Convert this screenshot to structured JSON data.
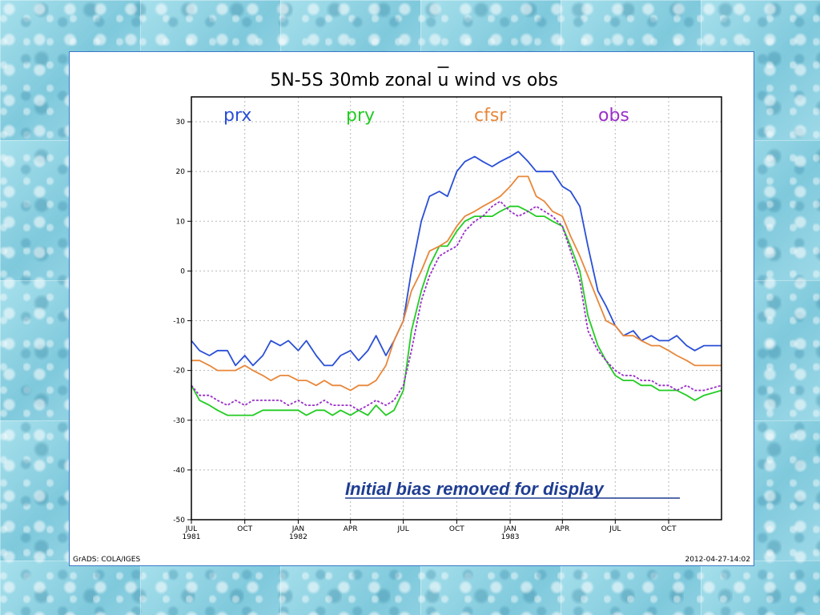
{
  "chart_data": {
    "type": "line",
    "title": "5N-5S 30mb zonal u wind vs obs",
    "title_overline_char": "u",
    "xlabel": "",
    "ylabel": "",
    "ylim": [
      -50,
      35
    ],
    "yticks": [
      30,
      20,
      10,
      0,
      -10,
      -20,
      -30,
      -40,
      -50
    ],
    "ytick_labels": [
      "30",
      "20",
      "10",
      "0",
      "-10",
      "-20",
      "-30",
      "-40",
      "-50"
    ],
    "x_start": "1981-07-01",
    "x_end": "1983-12-31",
    "xticks": [
      {
        "date": "1981-07-01",
        "label": "JUL",
        "sub": "1981"
      },
      {
        "date": "1981-10-01",
        "label": "OCT",
        "sub": ""
      },
      {
        "date": "1982-01-01",
        "label": "JAN",
        "sub": "1982"
      },
      {
        "date": "1982-04-01",
        "label": "APR",
        "sub": ""
      },
      {
        "date": "1982-07-01",
        "label": "JUL",
        "sub": ""
      },
      {
        "date": "1982-10-01",
        "label": "OCT",
        "sub": ""
      },
      {
        "date": "1983-01-01",
        "label": "JAN",
        "sub": "1983"
      },
      {
        "date": "1983-04-01",
        "label": "APR",
        "sub": ""
      },
      {
        "date": "1983-07-01",
        "label": "JUL",
        "sub": ""
      },
      {
        "date": "1983-10-01",
        "label": "OCT",
        "sub": ""
      }
    ],
    "grid": true,
    "legend_position": "top",
    "annotation": "Initial bias removed for display",
    "series": [
      {
        "name": "prx",
        "color": "#2a4fd6",
        "dashed": false,
        "points": [
          [
            "1981-07-01",
            -14
          ],
          [
            "1981-07-15",
            -16
          ],
          [
            "1981-08-01",
            -17
          ],
          [
            "1981-08-15",
            -16
          ],
          [
            "1981-09-01",
            -16
          ],
          [
            "1981-09-15",
            -19
          ],
          [
            "1981-10-01",
            -17
          ],
          [
            "1981-10-15",
            -19
          ],
          [
            "1981-11-01",
            -17
          ],
          [
            "1981-11-15",
            -14
          ],
          [
            "1981-12-01",
            -15
          ],
          [
            "1981-12-15",
            -14
          ],
          [
            "1982-01-01",
            -16
          ],
          [
            "1982-01-15",
            -14
          ],
          [
            "1982-02-01",
            -17
          ],
          [
            "1982-02-15",
            -19
          ],
          [
            "1982-03-01",
            -19
          ],
          [
            "1982-03-15",
            -17
          ],
          [
            "1982-04-01",
            -16
          ],
          [
            "1982-04-15",
            -18
          ],
          [
            "1982-05-01",
            -16
          ],
          [
            "1982-05-15",
            -13
          ],
          [
            "1982-06-01",
            -17
          ],
          [
            "1982-06-15",
            -14
          ],
          [
            "1982-07-01",
            -10
          ],
          [
            "1982-07-15",
            0
          ],
          [
            "1982-08-01",
            10
          ],
          [
            "1982-08-15",
            15
          ],
          [
            "1982-09-01",
            16
          ],
          [
            "1982-09-15",
            15
          ],
          [
            "1982-10-01",
            20
          ],
          [
            "1982-10-15",
            22
          ],
          [
            "1982-11-01",
            23
          ],
          [
            "1982-11-15",
            22
          ],
          [
            "1982-12-01",
            21
          ],
          [
            "1982-12-15",
            22
          ],
          [
            "1983-01-01",
            23
          ],
          [
            "1983-01-15",
            24
          ],
          [
            "1983-02-01",
            22
          ],
          [
            "1983-02-15",
            20
          ],
          [
            "1983-03-01",
            20
          ],
          [
            "1983-03-15",
            20
          ],
          [
            "1983-04-01",
            17
          ],
          [
            "1983-04-15",
            16
          ],
          [
            "1983-05-01",
            13
          ],
          [
            "1983-05-15",
            5
          ],
          [
            "1983-06-01",
            -4
          ],
          [
            "1983-06-15",
            -7
          ],
          [
            "1983-07-01",
            -11
          ],
          [
            "1983-07-15",
            -13
          ],
          [
            "1983-08-01",
            -12
          ],
          [
            "1983-08-15",
            -14
          ],
          [
            "1983-09-01",
            -13
          ],
          [
            "1983-09-15",
            -14
          ],
          [
            "1983-10-01",
            -14
          ],
          [
            "1983-10-15",
            -13
          ],
          [
            "1983-11-01",
            -15
          ],
          [
            "1983-11-15",
            -16
          ],
          [
            "1983-12-01",
            -15
          ],
          [
            "1983-12-31",
            -15
          ]
        ]
      },
      {
        "name": "pry",
        "color": "#22cc22",
        "dashed": false,
        "points": [
          [
            "1981-07-01",
            -23
          ],
          [
            "1981-07-15",
            -26
          ],
          [
            "1981-08-01",
            -27
          ],
          [
            "1981-08-15",
            -28
          ],
          [
            "1981-09-01",
            -29
          ],
          [
            "1981-09-15",
            -29
          ],
          [
            "1981-10-01",
            -29
          ],
          [
            "1981-10-15",
            -29
          ],
          [
            "1981-11-01",
            -28
          ],
          [
            "1981-11-15",
            -28
          ],
          [
            "1981-12-01",
            -28
          ],
          [
            "1981-12-15",
            -28
          ],
          [
            "1982-01-01",
            -28
          ],
          [
            "1982-01-15",
            -29
          ],
          [
            "1982-02-01",
            -28
          ],
          [
            "1982-02-15",
            -28
          ],
          [
            "1982-03-01",
            -29
          ],
          [
            "1982-03-15",
            -28
          ],
          [
            "1982-04-01",
            -29
          ],
          [
            "1982-04-15",
            -28
          ],
          [
            "1982-05-01",
            -29
          ],
          [
            "1982-05-15",
            -27
          ],
          [
            "1982-06-01",
            -29
          ],
          [
            "1982-06-15",
            -28
          ],
          [
            "1982-07-01",
            -24
          ],
          [
            "1982-07-15",
            -12
          ],
          [
            "1982-08-01",
            -4
          ],
          [
            "1982-08-15",
            1
          ],
          [
            "1982-09-01",
            5
          ],
          [
            "1982-09-15",
            5
          ],
          [
            "1982-10-01",
            8
          ],
          [
            "1982-10-15",
            10
          ],
          [
            "1982-11-01",
            11
          ],
          [
            "1982-11-15",
            11
          ],
          [
            "1982-12-01",
            11
          ],
          [
            "1982-12-15",
            12
          ],
          [
            "1983-01-01",
            13
          ],
          [
            "1983-01-15",
            13
          ],
          [
            "1983-02-01",
            12
          ],
          [
            "1983-02-15",
            11
          ],
          [
            "1983-03-01",
            11
          ],
          [
            "1983-03-15",
            10
          ],
          [
            "1983-04-01",
            9
          ],
          [
            "1983-04-15",
            5
          ],
          [
            "1983-05-01",
            0
          ],
          [
            "1983-05-15",
            -9
          ],
          [
            "1983-06-01",
            -15
          ],
          [
            "1983-06-15",
            -18
          ],
          [
            "1983-07-01",
            -21
          ],
          [
            "1983-07-15",
            -22
          ],
          [
            "1983-08-01",
            -22
          ],
          [
            "1983-08-15",
            -23
          ],
          [
            "1983-09-01",
            -23
          ],
          [
            "1983-09-15",
            -24
          ],
          [
            "1983-10-01",
            -24
          ],
          [
            "1983-10-15",
            -24
          ],
          [
            "1983-11-01",
            -25
          ],
          [
            "1983-11-15",
            -26
          ],
          [
            "1983-12-01",
            -25
          ],
          [
            "1983-12-31",
            -24
          ]
        ]
      },
      {
        "name": "cfsr",
        "color": "#e8873a",
        "dashed": false,
        "points": [
          [
            "1981-07-01",
            -18
          ],
          [
            "1981-07-15",
            -18
          ],
          [
            "1981-08-01",
            -19
          ],
          [
            "1981-08-15",
            -20
          ],
          [
            "1981-09-01",
            -20
          ],
          [
            "1981-09-15",
            -20
          ],
          [
            "1981-10-01",
            -19
          ],
          [
            "1981-10-15",
            -20
          ],
          [
            "1981-11-01",
            -21
          ],
          [
            "1981-11-15",
            -22
          ],
          [
            "1981-12-01",
            -21
          ],
          [
            "1981-12-15",
            -21
          ],
          [
            "1982-01-01",
            -22
          ],
          [
            "1982-01-15",
            -22
          ],
          [
            "1982-02-01",
            -23
          ],
          [
            "1982-02-15",
            -22
          ],
          [
            "1982-03-01",
            -23
          ],
          [
            "1982-03-15",
            -23
          ],
          [
            "1982-04-01",
            -24
          ],
          [
            "1982-04-15",
            -23
          ],
          [
            "1982-05-01",
            -23
          ],
          [
            "1982-05-15",
            -22
          ],
          [
            "1982-06-01",
            -19
          ],
          [
            "1982-06-15",
            -14
          ],
          [
            "1982-07-01",
            -10
          ],
          [
            "1982-07-15",
            -4
          ],
          [
            "1982-08-01",
            0
          ],
          [
            "1982-08-15",
            4
          ],
          [
            "1982-09-01",
            5
          ],
          [
            "1982-09-15",
            6
          ],
          [
            "1982-10-01",
            9
          ],
          [
            "1982-10-15",
            11
          ],
          [
            "1982-11-01",
            12
          ],
          [
            "1982-11-15",
            13
          ],
          [
            "1982-12-01",
            14
          ],
          [
            "1982-12-15",
            15
          ],
          [
            "1983-01-01",
            17
          ],
          [
            "1983-01-15",
            19
          ],
          [
            "1983-02-01",
            19
          ],
          [
            "1983-02-15",
            15
          ],
          [
            "1983-03-01",
            14
          ],
          [
            "1983-03-15",
            12
          ],
          [
            "1983-04-01",
            11
          ],
          [
            "1983-04-15",
            7
          ],
          [
            "1983-05-01",
            3
          ],
          [
            "1983-05-15",
            -1
          ],
          [
            "1983-06-01",
            -6
          ],
          [
            "1983-06-15",
            -10
          ],
          [
            "1983-07-01",
            -11
          ],
          [
            "1983-07-15",
            -13
          ],
          [
            "1983-08-01",
            -13
          ],
          [
            "1983-08-15",
            -14
          ],
          [
            "1983-09-01",
            -15
          ],
          [
            "1983-09-15",
            -15
          ],
          [
            "1983-10-01",
            -16
          ],
          [
            "1983-10-15",
            -17
          ],
          [
            "1983-11-01",
            -18
          ],
          [
            "1983-11-15",
            -19
          ],
          [
            "1983-12-01",
            -19
          ],
          [
            "1983-12-31",
            -19
          ]
        ]
      },
      {
        "name": "obs",
        "color": "#9a2fc9",
        "dashed": true,
        "points": [
          [
            "1981-07-01",
            -23
          ],
          [
            "1981-07-15",
            -25
          ],
          [
            "1981-08-01",
            -25
          ],
          [
            "1981-08-15",
            -26
          ],
          [
            "1981-09-01",
            -27
          ],
          [
            "1981-09-15",
            -26
          ],
          [
            "1981-10-01",
            -27
          ],
          [
            "1981-10-15",
            -26
          ],
          [
            "1981-11-01",
            -26
          ],
          [
            "1981-11-15",
            -26
          ],
          [
            "1981-12-01",
            -26
          ],
          [
            "1981-12-15",
            -27
          ],
          [
            "1982-01-01",
            -26
          ],
          [
            "1982-01-15",
            -27
          ],
          [
            "1982-02-01",
            -27
          ],
          [
            "1982-02-15",
            -26
          ],
          [
            "1982-03-01",
            -27
          ],
          [
            "1982-03-15",
            -27
          ],
          [
            "1982-04-01",
            -27
          ],
          [
            "1982-04-15",
            -28
          ],
          [
            "1982-05-01",
            -27
          ],
          [
            "1982-05-15",
            -26
          ],
          [
            "1982-06-01",
            -27
          ],
          [
            "1982-06-15",
            -26
          ],
          [
            "1982-07-01",
            -23
          ],
          [
            "1982-07-15",
            -16
          ],
          [
            "1982-08-01",
            -6
          ],
          [
            "1982-08-15",
            -1
          ],
          [
            "1982-09-01",
            3
          ],
          [
            "1982-09-15",
            4
          ],
          [
            "1982-10-01",
            5
          ],
          [
            "1982-10-15",
            8
          ],
          [
            "1982-11-01",
            10
          ],
          [
            "1982-11-15",
            11
          ],
          [
            "1982-12-01",
            13
          ],
          [
            "1982-12-15",
            14
          ],
          [
            "1983-01-01",
            12
          ],
          [
            "1983-01-15",
            11
          ],
          [
            "1983-02-01",
            12
          ],
          [
            "1983-02-15",
            13
          ],
          [
            "1983-03-01",
            12
          ],
          [
            "1983-03-15",
            11
          ],
          [
            "1983-04-01",
            9
          ],
          [
            "1983-04-15",
            4
          ],
          [
            "1983-05-01",
            -2
          ],
          [
            "1983-05-15",
            -12
          ],
          [
            "1983-06-01",
            -16
          ],
          [
            "1983-06-15",
            -18
          ],
          [
            "1983-07-01",
            -20
          ],
          [
            "1983-07-15",
            -21
          ],
          [
            "1983-08-01",
            -21
          ],
          [
            "1983-08-15",
            -22
          ],
          [
            "1983-09-01",
            -22
          ],
          [
            "1983-09-15",
            -23
          ],
          [
            "1983-10-01",
            -23
          ],
          [
            "1983-10-15",
            -24
          ],
          [
            "1983-11-01",
            -23
          ],
          [
            "1983-11-15",
            -24
          ],
          [
            "1983-12-01",
            -24
          ],
          [
            "1983-12-31",
            -23
          ]
        ]
      }
    ]
  },
  "footer": {
    "left": "GrADS: COLA/IGES",
    "right": "2012-04-27-14:02"
  }
}
